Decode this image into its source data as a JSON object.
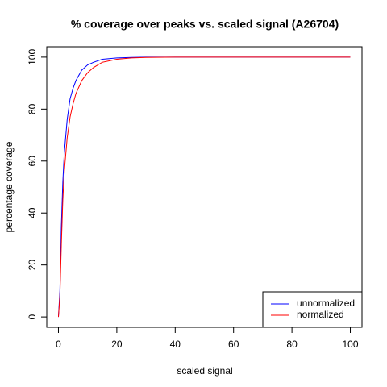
{
  "chart_data": {
    "type": "line",
    "title": "% coverage over peaks vs. scaled signal (A26704)",
    "x_label": "scaled signal",
    "y_label": "percentage coverage",
    "x": [
      0,
      0.5,
      1,
      1.5,
      2,
      3,
      4,
      5,
      6,
      8,
      10,
      12,
      15,
      20,
      25,
      30,
      40,
      60,
      80,
      100
    ],
    "series": [
      {
        "name": "unnormalized",
        "color": "#0000ff",
        "values": [
          0,
          10,
          35,
          52,
          63,
          76,
          84,
          88,
          91,
          95,
          97,
          98,
          99.2,
          99.7,
          99.9,
          100,
          100,
          100,
          100,
          100
        ]
      },
      {
        "name": "normalized",
        "color": "#ff0000",
        "values": [
          0,
          8,
          28,
          45,
          56,
          69,
          77,
          82,
          86,
          91,
          94,
          96,
          98,
          99.2,
          99.7,
          99.9,
          100,
          100,
          100,
          100
        ]
      }
    ],
    "xlim": [
      -4,
      104
    ],
    "ylim": [
      -4,
      104
    ],
    "xticks": [
      0,
      20,
      40,
      60,
      80,
      100
    ],
    "yticks": [
      0,
      20,
      40,
      60,
      80,
      100
    ],
    "legend": "bottom-right",
    "grid": false
  }
}
